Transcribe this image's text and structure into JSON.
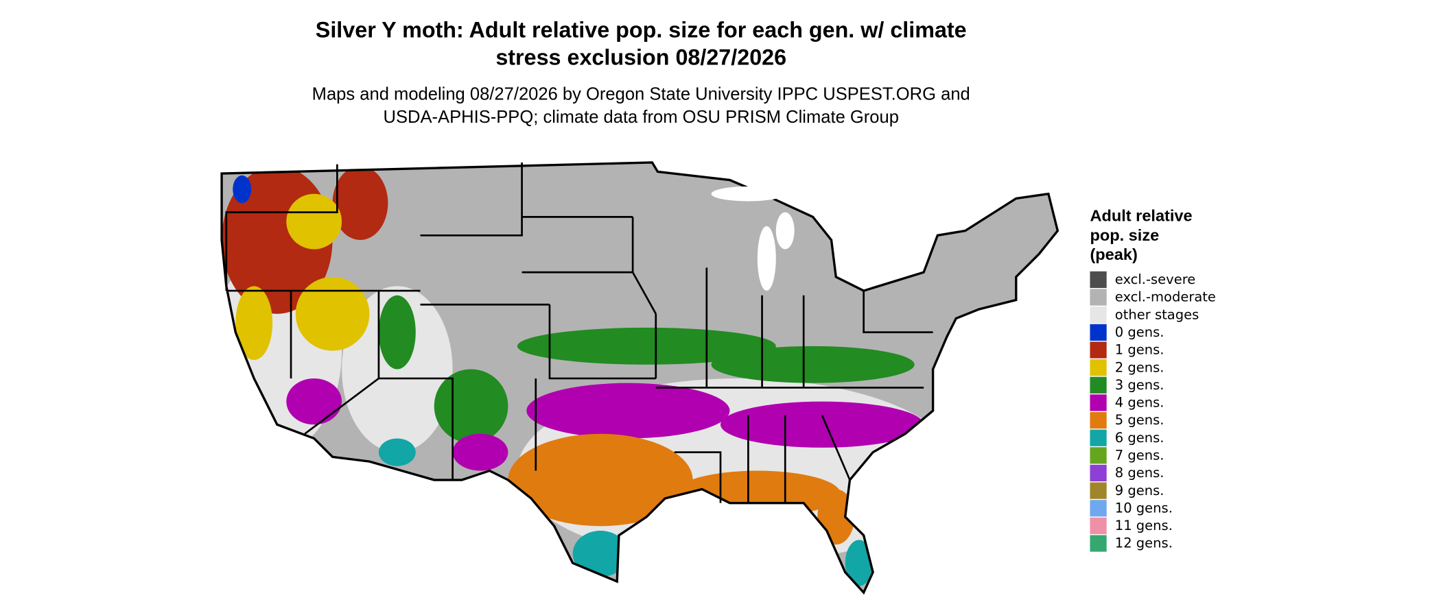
{
  "map": {
    "title": [
      "Silver Y moth: Adult relative pop. size for each gen. w/ climate",
      "stress exclusion 08/27/2026"
    ],
    "subtitle": [
      "Maps and modeling 08/27/2026 by Oregon State University IPPC USPEST.ORG and",
      "USDA-APHIS-PPQ; climate data from OSU PRISM Climate Group"
    ],
    "legend": {
      "title": [
        "Adult relative",
        "pop. size",
        "(peak)"
      ],
      "items": [
        {
          "label": "excl.-severe",
          "color": "#4d4d4d"
        },
        {
          "label": "excl.-moderate",
          "color": "#b3b3b3"
        },
        {
          "label": "other stages",
          "color": "#e6e6e6"
        },
        {
          "label": "0 gens.",
          "color": "#0033cc"
        },
        {
          "label": "1 gens.",
          "color": "#b22a12"
        },
        {
          "label": "2 gens.",
          "color": "#e0c200"
        },
        {
          "label": "3 gens.",
          "color": "#228b22"
        },
        {
          "label": "4 gens.",
          "color": "#b000b0"
        },
        {
          "label": "5 gens.",
          "color": "#e07b10"
        },
        {
          "label": "6 gens.",
          "color": "#12a6a6"
        },
        {
          "label": "7 gens.",
          "color": "#66a61e"
        },
        {
          "label": "8 gens.",
          "color": "#8e3fd6"
        },
        {
          "label": "9 gens.",
          "color": "#a0862a"
        },
        {
          "label": "10 gens.",
          "color": "#6fa8ef"
        },
        {
          "label": "11 gens.",
          "color": "#f090a8"
        },
        {
          "label": "12 gens.",
          "color": "#35a870"
        }
      ]
    }
  }
}
